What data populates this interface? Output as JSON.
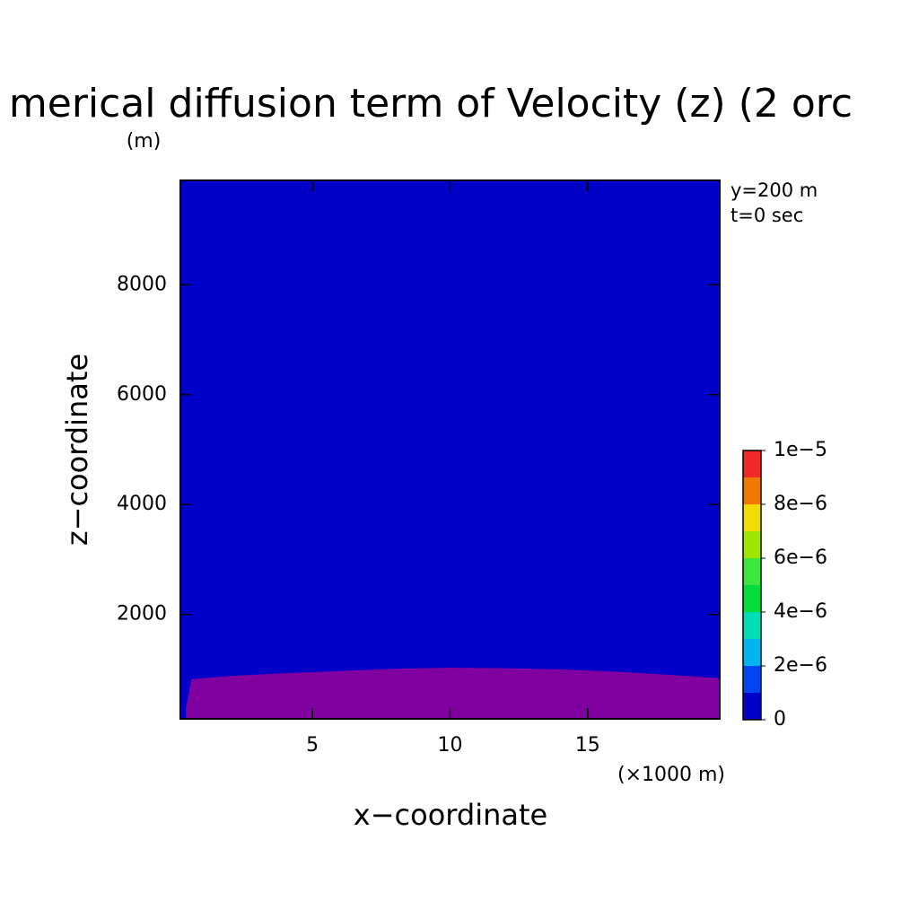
{
  "chart_data": {
    "type": "contour",
    "title": "merical diffusion term of Velocity (z) (2 orc",
    "y_unit": "(m)",
    "x_unit": "(×1000 m)",
    "xlabel": "x−coordinate",
    "ylabel": "z−coordinate",
    "annotations": [
      "y=200 m",
      "t=0 sec"
    ],
    "xlim": [
      0.2,
      19.8
    ],
    "ylim": [
      100,
      9900
    ],
    "xticks": [
      5,
      10,
      15
    ],
    "yticks": [
      2000,
      4000,
      6000,
      8000
    ],
    "levels": [
      0,
      1e-06,
      2e-06,
      3e-06,
      4e-06,
      5e-06,
      6e-06,
      7e-06,
      8e-06,
      9e-06,
      1e-05
    ],
    "level_colors": [
      "#0000c8",
      "#0046f0",
      "#00b4f0",
      "#00dcb4",
      "#00dc3c",
      "#3ce63c",
      "#a0e600",
      "#f0dc00",
      "#f07800",
      "#f02828"
    ],
    "colorbar_ticks": [
      0,
      {
        "value": 2e-06,
        "label": "2e−6"
      },
      {
        "value": 4e-06,
        "label": "4e−6"
      },
      {
        "value": 6e-06,
        "label": "6e−6"
      },
      {
        "value": 8e-06,
        "label": "8e−6"
      },
      {
        "value": 1e-05,
        "label": "1e−5"
      }
    ],
    "region": {
      "color": "#8000a0",
      "x": [
        0.4,
        0.6,
        2,
        4,
        6,
        8,
        10,
        12,
        14,
        16,
        18,
        19.8
      ],
      "z_top": [
        300,
        820,
        880,
        930,
        970,
        1010,
        1030,
        1020,
        1000,
        960,
        900,
        840
      ]
    }
  }
}
